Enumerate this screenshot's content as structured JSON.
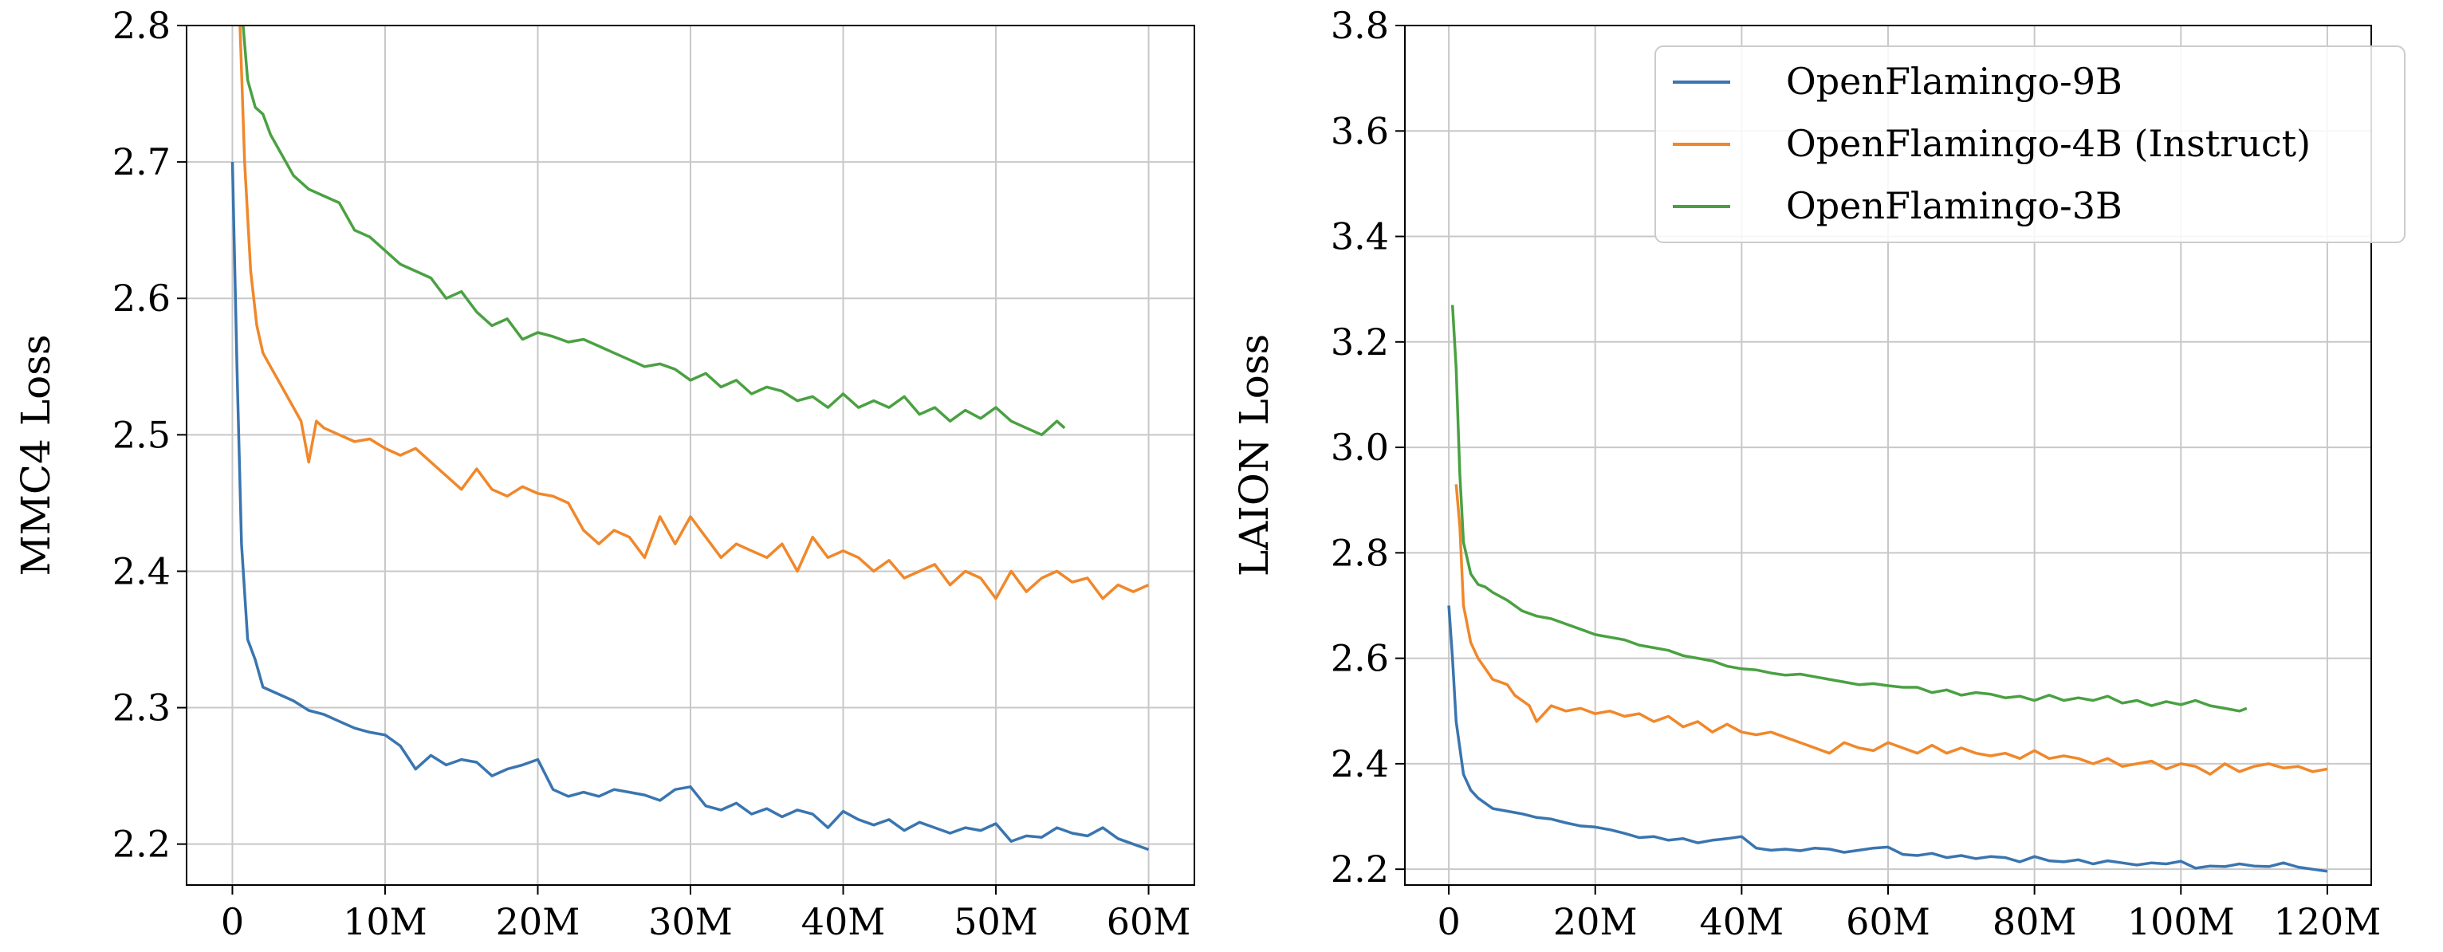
{
  "colors": {
    "blue": "#3a75af",
    "orange": "#f0882b",
    "green": "#4aa142",
    "grid": "#c8c8c8"
  },
  "chart_data": [
    {
      "type": "line",
      "xlabel": "",
      "ylabel": "MMC4 Loss",
      "xlim": [
        -3,
        63
      ],
      "ylim": [
        2.17,
        2.8
      ],
      "xticks": [
        0,
        10,
        20,
        30,
        40,
        50,
        60
      ],
      "xticklabels": [
        "0",
        "10M",
        "20M",
        "30M",
        "40M",
        "50M",
        "60M"
      ],
      "yticks": [
        2.2,
        2.3,
        2.4,
        2.5,
        2.6,
        2.7,
        2.8
      ],
      "yticklabels": [
        "2.2",
        "2.3",
        "2.4",
        "2.5",
        "2.6",
        "2.7",
        "2.8"
      ],
      "grid": true,
      "series": [
        {
          "name": "OpenFlamingo-9B",
          "color": "blue",
          "x": [
            0,
            0.3,
            0.6,
            1,
            1.5,
            2,
            3,
            4,
            5,
            6,
            7,
            8,
            9,
            10,
            11,
            12,
            13,
            14,
            15,
            16,
            17,
            18,
            19,
            20,
            21,
            22,
            23,
            24,
            25,
            26,
            27,
            28,
            29,
            30,
            31,
            32,
            33,
            34,
            35,
            36,
            37,
            38,
            39,
            40,
            41,
            42,
            43,
            44,
            45,
            46,
            47,
            48,
            49,
            50,
            51,
            52,
            53,
            54,
            55,
            56,
            57,
            58,
            59,
            60
          ],
          "y": [
            2.7,
            2.55,
            2.42,
            2.35,
            2.335,
            2.315,
            2.31,
            2.305,
            2.298,
            2.295,
            2.29,
            2.285,
            2.282,
            2.28,
            2.272,
            2.255,
            2.265,
            2.258,
            2.262,
            2.26,
            2.25,
            2.255,
            2.258,
            2.262,
            2.24,
            2.235,
            2.238,
            2.235,
            2.24,
            2.238,
            2.236,
            2.232,
            2.24,
            2.242,
            2.228,
            2.225,
            2.23,
            2.222,
            2.226,
            2.22,
            2.225,
            2.222,
            2.212,
            2.224,
            2.218,
            2.214,
            2.218,
            2.21,
            2.216,
            2.212,
            2.208,
            2.212,
            2.21,
            2.215,
            2.202,
            2.206,
            2.205,
            2.212,
            2.208,
            2.206,
            2.212,
            2.204,
            2.2,
            2.196
          ]
        },
        {
          "name": "OpenFlamingo-4B (Instruct)",
          "color": "orange",
          "x": [
            0.5,
            0.8,
            1.2,
            1.6,
            2,
            2.5,
            3,
            3.5,
            4,
            4.5,
            5,
            5.5,
            6,
            7,
            8,
            9,
            10,
            11,
            12,
            13,
            14,
            15,
            16,
            17,
            18,
            19,
            20,
            21,
            22,
            23,
            24,
            25,
            26,
            27,
            28,
            29,
            30,
            31,
            32,
            33,
            34,
            35,
            36,
            37,
            38,
            39,
            40,
            41,
            42,
            43,
            44,
            45,
            46,
            47,
            48,
            49,
            50,
            51,
            52,
            53,
            54,
            55,
            56,
            57,
            58,
            59,
            60
          ],
          "y": [
            2.8,
            2.7,
            2.62,
            2.58,
            2.56,
            2.55,
            2.54,
            2.53,
            2.52,
            2.51,
            2.48,
            2.51,
            2.505,
            2.5,
            2.495,
            2.497,
            2.49,
            2.485,
            2.49,
            2.48,
            2.47,
            2.46,
            2.475,
            2.46,
            2.455,
            2.462,
            2.457,
            2.455,
            2.45,
            2.43,
            2.42,
            2.43,
            2.425,
            2.41,
            2.44,
            2.42,
            2.44,
            2.425,
            2.41,
            2.42,
            2.415,
            2.41,
            2.42,
            2.4,
            2.425,
            2.41,
            2.415,
            2.41,
            2.4,
            2.408,
            2.395,
            2.4,
            2.405,
            2.39,
            2.4,
            2.395,
            2.38,
            2.4,
            2.385,
            2.395,
            2.4,
            2.392,
            2.395,
            2.38,
            2.39,
            2.385,
            2.39
          ]
        },
        {
          "name": "OpenFlamingo-3B",
          "color": "green",
          "x": [
            0.7,
            1,
            1.5,
            2,
            2.5,
            3,
            4,
            5,
            6,
            7,
            8,
            9,
            10,
            11,
            12,
            13,
            14,
            15,
            16,
            17,
            18,
            19,
            20,
            21,
            22,
            23,
            24,
            25,
            26,
            27,
            28,
            29,
            30,
            31,
            32,
            33,
            34,
            35,
            36,
            37,
            38,
            39,
            40,
            41,
            42,
            43,
            44,
            45,
            46,
            47,
            48,
            49,
            50,
            51,
            52,
            53,
            54,
            54.5
          ],
          "y": [
            2.8,
            2.76,
            2.74,
            2.735,
            2.72,
            2.71,
            2.69,
            2.68,
            2.675,
            2.67,
            2.65,
            2.645,
            2.635,
            2.625,
            2.62,
            2.615,
            2.6,
            2.605,
            2.59,
            2.58,
            2.585,
            2.57,
            2.575,
            2.572,
            2.568,
            2.57,
            2.565,
            2.56,
            2.555,
            2.55,
            2.552,
            2.548,
            2.54,
            2.545,
            2.535,
            2.54,
            2.53,
            2.535,
            2.532,
            2.525,
            2.528,
            2.52,
            2.53,
            2.52,
            2.525,
            2.52,
            2.528,
            2.515,
            2.52,
            2.51,
            2.518,
            2.512,
            2.52,
            2.51,
            2.505,
            2.5,
            2.51,
            2.505
          ]
        }
      ]
    },
    {
      "type": "line",
      "xlabel": "",
      "ylabel": "LAION Loss",
      "xlim": [
        -6,
        126
      ],
      "ylim": [
        2.17,
        3.8
      ],
      "xticks": [
        0,
        20,
        40,
        60,
        80,
        100,
        120
      ],
      "xticklabels": [
        "0",
        "20M",
        "40M",
        "60M",
        "80M",
        "100M",
        "120M"
      ],
      "yticks": [
        2.2,
        2.4,
        2.6,
        2.8,
        3.0,
        3.2,
        3.4,
        3.6,
        3.8
      ],
      "yticklabels": [
        "2.2",
        "2.4",
        "2.6",
        "2.8",
        "3.0",
        "3.2",
        "3.4",
        "3.6",
        "3.8"
      ],
      "grid": true,
      "legend_position": "top-right",
      "series": [
        {
          "name": "OpenFlamingo-9B",
          "color": "blue",
          "x": [
            0,
            0.5,
            1,
            2,
            3,
            4,
            6,
            8,
            10,
            12,
            14,
            16,
            18,
            20,
            22,
            24,
            26,
            28,
            30,
            32,
            34,
            36,
            38,
            40,
            42,
            44,
            46,
            48,
            50,
            52,
            54,
            56,
            58,
            60,
            62,
            64,
            66,
            68,
            70,
            72,
            74,
            76,
            78,
            80,
            82,
            84,
            86,
            88,
            90,
            92,
            94,
            96,
            98,
            100,
            102,
            104,
            106,
            108,
            110,
            112,
            114,
            116,
            118,
            120
          ],
          "y": [
            2.7,
            2.6,
            2.48,
            2.38,
            2.35,
            2.335,
            2.315,
            2.31,
            2.305,
            2.298,
            2.295,
            2.288,
            2.282,
            2.28,
            2.275,
            2.268,
            2.26,
            2.262,
            2.255,
            2.258,
            2.25,
            2.255,
            2.258,
            2.262,
            2.24,
            2.236,
            2.238,
            2.235,
            2.24,
            2.238,
            2.232,
            2.236,
            2.24,
            2.242,
            2.228,
            2.226,
            2.23,
            2.222,
            2.226,
            2.22,
            2.224,
            2.222,
            2.214,
            2.224,
            2.216,
            2.214,
            2.218,
            2.21,
            2.216,
            2.212,
            2.208,
            2.212,
            2.21,
            2.215,
            2.202,
            2.206,
            2.205,
            2.21,
            2.206,
            2.205,
            2.212,
            2.204,
            2.2,
            2.196
          ]
        },
        {
          "name": "OpenFlamingo-4B (Instruct)",
          "color": "orange",
          "x": [
            1,
            1.5,
            2,
            3,
            4,
            5,
            6,
            7,
            8,
            9,
            10,
            11,
            12,
            14,
            16,
            18,
            20,
            22,
            24,
            26,
            28,
            30,
            32,
            34,
            36,
            38,
            40,
            42,
            44,
            46,
            48,
            50,
            52,
            54,
            56,
            58,
            60,
            62,
            64,
            66,
            68,
            70,
            72,
            74,
            76,
            78,
            80,
            82,
            84,
            86,
            88,
            90,
            92,
            94,
            96,
            98,
            100,
            102,
            104,
            106,
            108,
            110,
            112,
            114,
            116,
            118,
            120
          ],
          "y": [
            2.93,
            2.85,
            2.7,
            2.63,
            2.6,
            2.58,
            2.56,
            2.555,
            2.55,
            2.53,
            2.52,
            2.51,
            2.48,
            2.51,
            2.5,
            2.505,
            2.495,
            2.5,
            2.49,
            2.495,
            2.48,
            2.49,
            2.47,
            2.48,
            2.46,
            2.475,
            2.46,
            2.455,
            2.46,
            2.45,
            2.44,
            2.43,
            2.42,
            2.44,
            2.43,
            2.425,
            2.44,
            2.43,
            2.42,
            2.435,
            2.42,
            2.43,
            2.42,
            2.415,
            2.42,
            2.41,
            2.425,
            2.41,
            2.415,
            2.41,
            2.4,
            2.41,
            2.395,
            2.4,
            2.405,
            2.39,
            2.4,
            2.395,
            2.38,
            2.4,
            2.385,
            2.395,
            2.4,
            2.392,
            2.395,
            2.385,
            2.39
          ]
        },
        {
          "name": "OpenFlamingo-3B",
          "color": "green",
          "x": [
            0.5,
            1,
            1.5,
            2,
            3,
            4,
            5,
            6,
            8,
            10,
            12,
            14,
            16,
            18,
            20,
            22,
            24,
            26,
            28,
            30,
            32,
            34,
            36,
            38,
            40,
            42,
            44,
            46,
            48,
            50,
            52,
            54,
            56,
            58,
            60,
            62,
            64,
            66,
            68,
            70,
            72,
            74,
            76,
            78,
            80,
            82,
            84,
            86,
            88,
            90,
            92,
            94,
            96,
            98,
            100,
            102,
            104,
            106,
            108,
            109
          ],
          "y": [
            3.27,
            3.15,
            2.95,
            2.82,
            2.76,
            2.74,
            2.735,
            2.725,
            2.71,
            2.69,
            2.68,
            2.675,
            2.665,
            2.655,
            2.645,
            2.64,
            2.635,
            2.625,
            2.62,
            2.615,
            2.605,
            2.6,
            2.595,
            2.585,
            2.58,
            2.578,
            2.572,
            2.568,
            2.57,
            2.565,
            2.56,
            2.555,
            2.55,
            2.552,
            2.548,
            2.545,
            2.545,
            2.535,
            2.54,
            2.53,
            2.535,
            2.532,
            2.525,
            2.528,
            2.52,
            2.53,
            2.52,
            2.525,
            2.52,
            2.528,
            2.515,
            2.52,
            2.51,
            2.518,
            2.512,
            2.52,
            2.51,
            2.505,
            2.5,
            2.505
          ]
        }
      ]
    }
  ]
}
